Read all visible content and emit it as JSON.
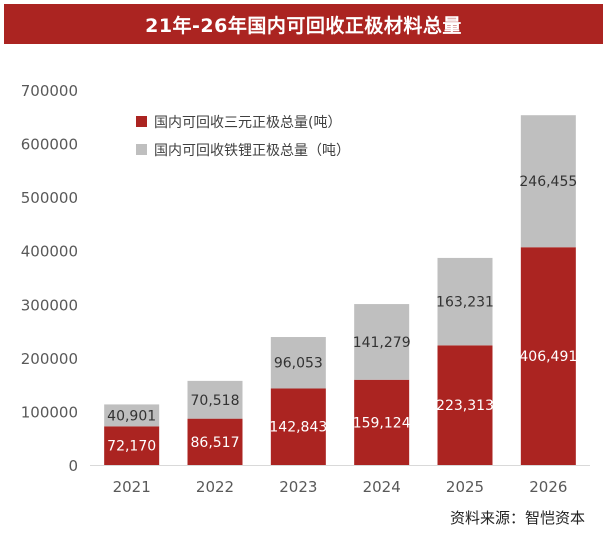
{
  "chart_data": {
    "type": "bar",
    "stacked": true,
    "title": "21年-26年国内可回收正极材料总量",
    "categories": [
      "2021",
      "2022",
      "2023",
      "2024",
      "2025",
      "2026"
    ],
    "series": [
      {
        "name": "国内可回收三元正极总量(吨）",
        "color": "#ab2421",
        "values": [
          72170,
          86517,
          142843,
          159124,
          223313,
          406491
        ],
        "labels": [
          "72,170",
          "86,517",
          "142,843",
          "159,124",
          "223,313",
          "406,491"
        ]
      },
      {
        "name": "国内可回收铁锂正极总量（吨）",
        "color": "#bfbfbf",
        "values": [
          40901,
          70518,
          96053,
          141279,
          163231,
          246455
        ],
        "labels": [
          "40,901",
          "70,518",
          "96,053",
          "141,279",
          "163,231",
          "246,455"
        ]
      }
    ],
    "ylim": [
      0,
      700000
    ],
    "yticks": [
      "0",
      "100000",
      "200000",
      "300000",
      "400000",
      "500000",
      "600000",
      "700000"
    ],
    "legend": "top-left",
    "grid": false
  },
  "source": "资料来源：智恺资本"
}
